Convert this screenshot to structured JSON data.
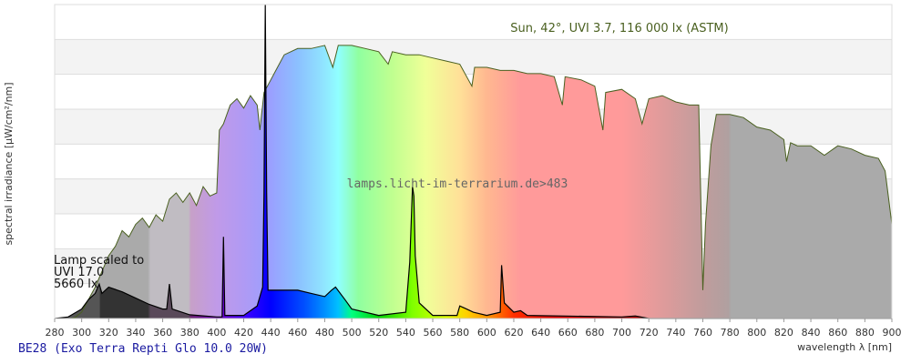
{
  "chart_data": {
    "type": "area",
    "title": "Sun, 42°, UVI 3.7, 116 000 lx (ASTM)",
    "watermark": "lamps.licht-im-terrarium.de>483",
    "lamp_label": [
      "Lamp scaled to",
      "UVI 17.0",
      "5660 lx"
    ],
    "xlabel": "wavelength λ [nm]",
    "ylabel": "spectral irradiance [µW/cm²/nm]",
    "xlim": [
      280,
      900
    ],
    "ylim": [
      0,
      1
    ],
    "xticks": [
      280,
      300,
      320,
      340,
      360,
      380,
      400,
      420,
      440,
      460,
      480,
      500,
      520,
      540,
      560,
      580,
      600,
      620,
      640,
      660,
      680,
      700,
      720,
      740,
      760,
      780,
      800,
      820,
      840,
      860,
      880,
      900
    ],
    "series": [
      {
        "name": "Sun, 42°, UVI 3.7, 116 000 lx (ASTM)",
        "color": "#4a6020",
        "x": [
          280,
          292,
          295,
          300,
          305,
          310,
          315,
          320,
          325,
          330,
          335,
          340,
          345,
          350,
          355,
          360,
          365,
          370,
          375,
          380,
          385,
          390,
          395,
          400,
          402,
          405,
          410,
          415,
          420,
          425,
          430,
          432,
          435,
          440,
          445,
          450,
          460,
          470,
          480,
          486,
          490,
          500,
          510,
          520,
          527,
          530,
          540,
          550,
          560,
          570,
          580,
          589,
          591,
          600,
          610,
          620,
          630,
          640,
          650,
          656,
          658,
          670,
          680,
          686,
          688,
          700,
          710,
          715,
          720,
          730,
          740,
          750,
          757,
          760,
          762,
          766,
          770,
          780,
          790,
          800,
          810,
          820,
          822,
          825,
          830,
          840,
          850,
          860,
          870,
          880,
          890,
          895,
          900
        ],
        "y": [
          0,
          0,
          0.003,
          0.02,
          0.06,
          0.1,
          0.15,
          0.2,
          0.23,
          0.28,
          0.26,
          0.3,
          0.32,
          0.29,
          0.33,
          0.31,
          0.38,
          0.4,
          0.37,
          0.4,
          0.36,
          0.42,
          0.39,
          0.4,
          0.6,
          0.62,
          0.68,
          0.7,
          0.67,
          0.71,
          0.68,
          0.6,
          0.72,
          0.76,
          0.8,
          0.84,
          0.86,
          0.86,
          0.87,
          0.8,
          0.87,
          0.87,
          0.86,
          0.85,
          0.81,
          0.85,
          0.84,
          0.84,
          0.83,
          0.82,
          0.81,
          0.74,
          0.8,
          0.8,
          0.79,
          0.79,
          0.78,
          0.78,
          0.77,
          0.68,
          0.77,
          0.76,
          0.74,
          0.6,
          0.72,
          0.73,
          0.7,
          0.62,
          0.7,
          0.71,
          0.69,
          0.68,
          0.68,
          0.09,
          0.3,
          0.55,
          0.65,
          0.65,
          0.64,
          0.61,
          0.6,
          0.57,
          0.5,
          0.56,
          0.55,
          0.55,
          0.52,
          0.55,
          0.54,
          0.52,
          0.51,
          0.47,
          0.3
        ]
      },
      {
        "name": "BE28 (Exo Terra Repti Glo 10.0 20W)",
        "color": "#000000",
        "x": [
          280,
          290,
          300,
          305,
          310,
          313,
          315,
          320,
          330,
          340,
          350,
          360,
          363,
          365,
          367,
          380,
          400,
          404,
          405,
          406,
          420,
          430,
          434,
          435,
          436,
          437,
          438,
          450,
          460,
          470,
          480,
          485,
          488,
          495,
          500,
          520,
          540,
          543,
          545,
          546,
          547,
          550,
          560,
          578,
          580,
          585,
          590,
          600,
          610,
          611,
          613,
          620,
          625,
          630,
          700,
          710,
          720,
          900
        ],
        "y": [
          0,
          0.005,
          0.03,
          0.06,
          0.08,
          0.11,
          0.08,
          0.1,
          0.085,
          0.065,
          0.045,
          0.03,
          0.03,
          0.11,
          0.03,
          0.012,
          0.005,
          0.005,
          0.26,
          0.01,
          0.01,
          0.04,
          0.1,
          0.4,
          1.0,
          0.4,
          0.09,
          0.09,
          0.09,
          0.08,
          0.07,
          0.09,
          0.1,
          0.06,
          0.03,
          0.01,
          0.02,
          0.18,
          0.42,
          0.39,
          0.2,
          0.05,
          0.01,
          0.01,
          0.04,
          0.03,
          0.02,
          0.01,
          0.02,
          0.17,
          0.05,
          0.02,
          0.025,
          0.01,
          0.005,
          0.008,
          0,
          0
        ]
      }
    ],
    "bottom_title": "BE28 (Exo Terra Repti Glo 10.0 20W)"
  }
}
